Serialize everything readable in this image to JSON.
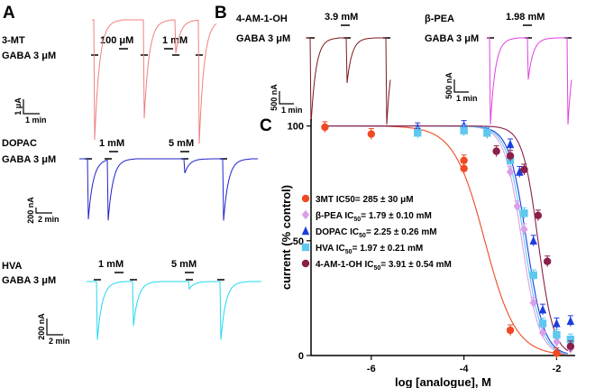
{
  "panels": {
    "A": "A",
    "B": "B",
    "C": "C"
  },
  "gaba_label": "GABA 3 μM",
  "traces": [
    {
      "key": "mt3",
      "name": "3-MT",
      "color": "#f08080",
      "concs": [
        "100 μM",
        "1 mM"
      ],
      "amp_scale": "1 μA",
      "time_scale": "1 min"
    },
    {
      "key": "dopac",
      "name": "DOPAC",
      "color": "#2222cc",
      "concs": [
        "1 mM",
        "5 mM"
      ],
      "amp_scale": "200 nA",
      "time_scale": "2 min"
    },
    {
      "key": "hva",
      "name": "HVA",
      "color": "#22d8f0",
      "concs": [
        "1 mM",
        "5 mM"
      ],
      "amp_scale": "200 nA",
      "time_scale": "2 min"
    },
    {
      "key": "am1oh",
      "name": "4-AM-1-OH",
      "color": "#7a1a1a",
      "concs": [
        "3.9 mM"
      ],
      "amp_scale": "500 nA",
      "time_scale": "1 min"
    },
    {
      "key": "bpea",
      "name": "β-PEA",
      "color": "#e040e0",
      "concs": [
        "1.98 mM"
      ],
      "amp_scale": "500 nA",
      "time_scale": "1 min"
    }
  ],
  "chart_data": {
    "type": "scatter",
    "xlabel": "log [analogue], M",
    "ylabel": "current (% control)",
    "xlim": [
      -7.3,
      -1.6
    ],
    "ylim": [
      0,
      103
    ],
    "xticks": [
      -6,
      -4,
      -2
    ],
    "yticks": [
      0,
      50,
      100
    ],
    "legend_position": "center-left",
    "series": [
      {
        "name": "3MT",
        "legend": [
          "3MT IC50= 285 ± 30 μM"
        ],
        "color": "#f04a22",
        "marker": "circle",
        "ic50_log": -3.55,
        "hill": 1.3,
        "x": [
          -7,
          -6,
          -5,
          -4,
          -4,
          -3,
          -2
        ],
        "y": [
          99.5,
          96.5,
          98,
          85,
          81.5,
          11,
          1
        ]
      },
      {
        "name": "β-PEA",
        "legend": [
          "β-PEA IC",
          "50",
          "= 1.79 ± 0.10 mM"
        ],
        "color": "#d9a0e8",
        "marker": "diamond",
        "ic50_log": -2.75,
        "hill": 2.3,
        "x": [
          -5,
          -4,
          -3,
          -2.85,
          -2.7,
          -2.5,
          -2.3,
          -2,
          -1.7
        ],
        "y": [
          98,
          98.5,
          80,
          65,
          55,
          23,
          10,
          6,
          3
        ]
      },
      {
        "name": "DOPAC",
        "legend": [
          "DOPAC IC",
          "50",
          "= 2.25 ± 0.26 mM"
        ],
        "color": "#1a3de0",
        "marker": "triangle",
        "ic50_log": -2.65,
        "hill": 2.3,
        "x": [
          -5,
          -4,
          -3.5,
          -3,
          -2.8,
          -2.5,
          -2.3,
          -2,
          -1.7
        ],
        "y": [
          99,
          100,
          97,
          92,
          80,
          50,
          20,
          14,
          15
        ]
      },
      {
        "name": "HVA",
        "legend": [
          "HVA IC",
          "50",
          "= 1.97 ± 0.21 mM"
        ],
        "color": "#5fc8f0",
        "marker": "square",
        "ic50_log": -2.7,
        "hill": 2.3,
        "x": [
          -5,
          -4,
          -3.5,
          -3,
          -2.7,
          -2.5,
          -2.3,
          -2,
          -1.7
        ],
        "y": [
          97,
          98,
          97,
          85,
          62,
          35,
          14,
          9,
          7
        ]
      },
      {
        "name": "4-AM-1-OH",
        "legend": [
          "4-AM-1-OH IC",
          "50",
          "= 3.91 ± 0.54 mM"
        ],
        "color": "#8a1f4a",
        "marker": "circle",
        "ic50_log": -2.4,
        "hill": 2.6,
        "x": [
          -3.3,
          -3,
          -2.7,
          -2.4,
          -2.2,
          -1.7
        ],
        "y": [
          89,
          87,
          81,
          61,
          41,
          4
        ]
      }
    ]
  }
}
